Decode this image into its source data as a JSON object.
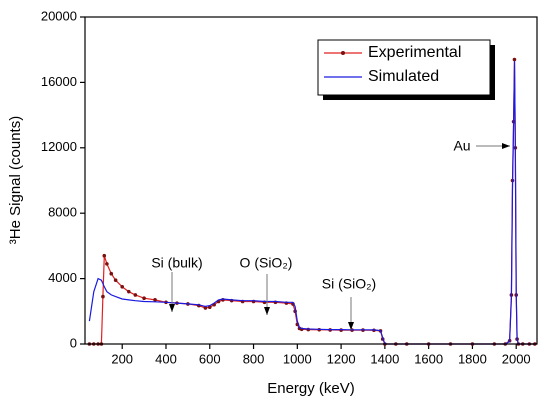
{
  "chart_data": {
    "type": "line",
    "x_label": "Energy (keV)",
    "y_label": "³He Signal (counts)",
    "x": [
      50,
      70,
      90,
      105,
      112,
      118,
      130,
      150,
      170,
      200,
      230,
      260,
      300,
      350,
      400,
      450,
      500,
      550,
      580,
      600,
      620,
      640,
      660,
      700,
      750,
      800,
      850,
      900,
      950,
      980,
      990,
      1000,
      1010,
      1020,
      1050,
      1100,
      1150,
      1200,
      1250,
      1300,
      1350,
      1380,
      1390,
      1400,
      1450,
      1500,
      1600,
      1700,
      1800,
      1900,
      1950,
      1970,
      1978,
      1983,
      1988,
      1992,
      1996,
      2000,
      2004,
      2010,
      2030,
      2060,
      2085
    ],
    "series": [
      {
        "name": "Experimental",
        "color": "#e02020",
        "marker_color": "#7a1010",
        "values": [
          0,
          0,
          0,
          0,
          2900,
          5400,
          4900,
          4300,
          3900,
          3500,
          3200,
          3000,
          2800,
          2700,
          2550,
          2500,
          2450,
          2350,
          2200,
          2250,
          2400,
          2600,
          2700,
          2650,
          2600,
          2600,
          2550,
          2550,
          2500,
          2450,
          2000,
          1200,
          950,
          900,
          880,
          870,
          860,
          850,
          850,
          850,
          840,
          800,
          300,
          0,
          0,
          0,
          0,
          0,
          0,
          0,
          0,
          200,
          3000,
          10000,
          13600,
          17400,
          12000,
          3000,
          300,
          0,
          0,
          0,
          0
        ]
      },
      {
        "name": "Simulated",
        "color": "#1a1ae0",
        "values": [
          1400,
          3200,
          4000,
          3900,
          3700,
          3500,
          3200,
          3000,
          2900,
          2750,
          2700,
          2650,
          2600,
          2580,
          2550,
          2500,
          2450,
          2400,
          2300,
          2350,
          2500,
          2700,
          2750,
          2700,
          2650,
          2650,
          2600,
          2600,
          2550,
          2550,
          2300,
          1400,
          1000,
          950,
          920,
          900,
          880,
          880,
          870,
          870,
          860,
          820,
          400,
          0,
          0,
          0,
          0,
          0,
          0,
          0,
          0,
          150,
          2800,
          9500,
          13500,
          17300,
          12500,
          3200,
          300,
          0,
          0,
          0,
          0
        ]
      }
    ],
    "xlim": [
      30,
      2095
    ],
    "xticks": [
      200,
      400,
      600,
      800,
      1000,
      1200,
      1400,
      1600,
      1800,
      2000
    ],
    "ylim": [
      0,
      20000
    ],
    "yticks": [
      0,
      4000,
      8000,
      12000,
      16000,
      20000
    ],
    "annotations": [
      "Si (bulk)",
      "O (SiO₂)",
      "Si (SiO₂)",
      "Au"
    ]
  }
}
